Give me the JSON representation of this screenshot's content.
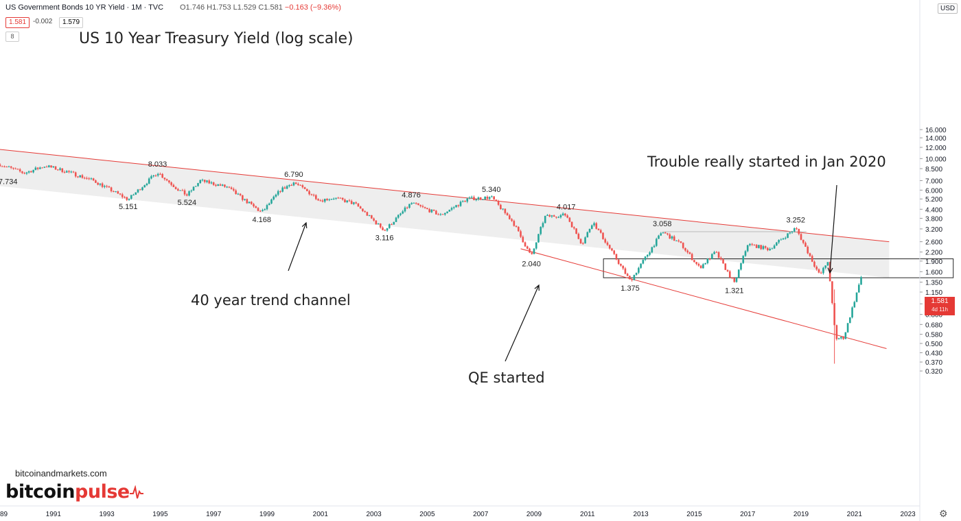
{
  "header": {
    "title": "US Government Bonds 10 YR Yield · 1M · TVC",
    "ohlc_prefix": "O1.746 H1.753 L1.529 C1.581",
    "ohlc_change": "−0.163 (−9.36%)",
    "bid": "1.581",
    "spread": "-0.002",
    "ask": "1.579",
    "indicator_count": "8",
    "currency": "USD"
  },
  "colors": {
    "up": "#26a69a",
    "down": "#ef5350",
    "trendline": "#e53935",
    "channel_fill": "#eeeeee",
    "text": "#222222"
  },
  "price_tag": {
    "value": "1.581",
    "countdown": "4d 11h"
  },
  "branding": {
    "site": "bitcoinandmarkets.com",
    "brand_a": "bitcoin",
    "brand_b": "pulse"
  },
  "chart_data": {
    "type": "candlestick",
    "title": "US 10 Year Treasury Yield (log scale)",
    "frequency": "monthly",
    "y_scale": "log",
    "x_range": [
      "1989",
      "2023"
    ],
    "y_range": [
      0.32,
      16.0
    ],
    "y_ticks": [
      "16.000",
      "14.000",
      "12.000",
      "10.000",
      "8.500",
      "7.000",
      "6.000",
      "5.200",
      "4.400",
      "3.800",
      "3.200",
      "2.600",
      "2.200",
      "1.900",
      "1.600",
      "1.350",
      "1.150",
      "0.950",
      "0.800",
      "0.680",
      "0.580",
      "0.500",
      "0.430",
      "0.370",
      "0.320"
    ],
    "x_ticks": [
      "89",
      "1991",
      "1993",
      "1995",
      "1997",
      "1999",
      "2001",
      "2003",
      "2005",
      "2007",
      "2009",
      "2011",
      "2013",
      "2015",
      "2017",
      "2019",
      "2021",
      "2023"
    ],
    "anchors": [
      {
        "t": 1989.0,
        "v": 9.1
      },
      {
        "t": 1989.9,
        "v": 7.9
      },
      {
        "t": 1990.7,
        "v": 8.9
      },
      {
        "t": 1991.5,
        "v": 8.1
      },
      {
        "t": 1992.5,
        "v": 7.0
      },
      {
        "t": 1993.8,
        "v": 5.151
      },
      {
        "t": 1994.9,
        "v": 8.033
      },
      {
        "t": 1995.6,
        "v": 6.2
      },
      {
        "t": 1996.0,
        "v": 5.524
      },
      {
        "t": 1996.5,
        "v": 7.0
      },
      {
        "t": 1997.5,
        "v": 6.3
      },
      {
        "t": 1998.8,
        "v": 4.168
      },
      {
        "t": 1999.5,
        "v": 6.0
      },
      {
        "t": 2000.0,
        "v": 6.79
      },
      {
        "t": 2001.0,
        "v": 5.1
      },
      {
        "t": 2001.5,
        "v": 5.3
      },
      {
        "t": 2002.3,
        "v": 4.8
      },
      {
        "t": 2003.4,
        "v": 3.116
      },
      {
        "t": 2004.4,
        "v": 4.876
      },
      {
        "t": 2005.5,
        "v": 4.0
      },
      {
        "t": 2006.5,
        "v": 5.2
      },
      {
        "t": 2007.4,
        "v": 5.34
      },
      {
        "t": 2008.2,
        "v": 3.6
      },
      {
        "t": 2008.9,
        "v": 2.04
      },
      {
        "t": 2009.4,
        "v": 3.9
      },
      {
        "t": 2010.2,
        "v": 4.017
      },
      {
        "t": 2010.8,
        "v": 2.5
      },
      {
        "t": 2011.2,
        "v": 3.6
      },
      {
        "t": 2012.6,
        "v": 1.375
      },
      {
        "t": 2013.8,
        "v": 3.058
      },
      {
        "t": 2014.5,
        "v": 2.5
      },
      {
        "t": 2015.2,
        "v": 1.7
      },
      {
        "t": 2015.8,
        "v": 2.2
      },
      {
        "t": 2016.5,
        "v": 1.321
      },
      {
        "t": 2017.0,
        "v": 2.5
      },
      {
        "t": 2017.8,
        "v": 2.3
      },
      {
        "t": 2018.8,
        "v": 3.252
      },
      {
        "t": 2019.7,
        "v": 1.5
      },
      {
        "t": 2020.0,
        "v": 1.9
      },
      {
        "t": 2020.3,
        "v": 0.54
      },
      {
        "t": 2020.6,
        "v": 0.55
      },
      {
        "t": 2021.0,
        "v": 1.0
      },
      {
        "t": 2021.3,
        "v": 1.581
      }
    ],
    "price_labels": [
      {
        "t": 1989.3,
        "v": 7.734,
        "label": "7.734"
      },
      {
        "t": 1994.9,
        "v": 8.033,
        "label": "8.033"
      },
      {
        "t": 1993.8,
        "v": 5.151,
        "label": "5.151"
      },
      {
        "t": 1996.0,
        "v": 5.524,
        "label": "5.524"
      },
      {
        "t": 1998.8,
        "v": 4.168,
        "label": "4.168"
      },
      {
        "t": 2000.0,
        "v": 6.79,
        "label": "6.790"
      },
      {
        "t": 2003.4,
        "v": 3.116,
        "label": "3.116"
      },
      {
        "t": 2004.4,
        "v": 4.876,
        "label": "4.876"
      },
      {
        "t": 2007.4,
        "v": 5.34,
        "label": "5.340"
      },
      {
        "t": 2008.9,
        "v": 2.04,
        "label": "2.040"
      },
      {
        "t": 2010.2,
        "v": 4.017,
        "label": "4.017"
      },
      {
        "t": 2012.6,
        "v": 1.375,
        "label": "1.375"
      },
      {
        "t": 2013.8,
        "v": 3.058,
        "label": "3.058"
      },
      {
        "t": 2016.5,
        "v": 1.321,
        "label": "1.321"
      },
      {
        "t": 2018.8,
        "v": 3.252,
        "label": "3.252"
      }
    ],
    "trend_channel": {
      "upper": [
        {
          "t": 1989.0,
          "v": 11.6
        },
        {
          "t": 2022.3,
          "v": 2.6
        }
      ],
      "lower": [
        {
          "t": 1989.0,
          "v": 6.4
        },
        {
          "t": 2022.3,
          "v": 1.45
        }
      ]
    },
    "support_line": [
      {
        "t": 2008.5,
        "v": 2.32
      },
      {
        "t": 2022.2,
        "v": 0.46
      }
    ],
    "range_box": {
      "t0": 2011.6,
      "t1": 2024.7,
      "top": 1.97,
      "bottom": 1.45
    },
    "annotations": [
      {
        "text": "40 year trend channel"
      },
      {
        "text": "QE started"
      },
      {
        "text": "Trouble really started in Jan 2020"
      }
    ]
  }
}
